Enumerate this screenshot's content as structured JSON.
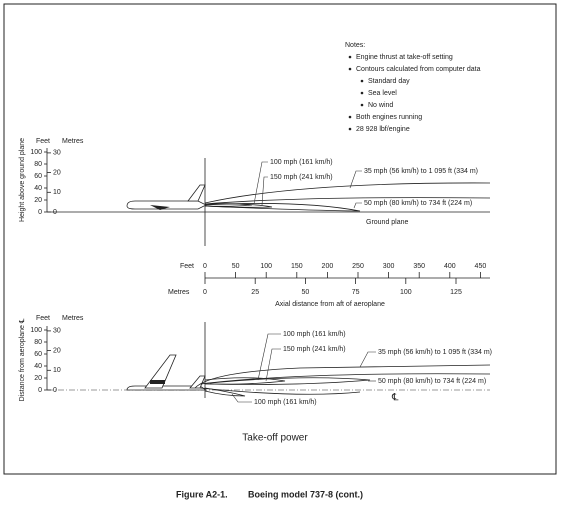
{
  "notes": {
    "title": "Notes:",
    "items": [
      "Engine thrust at take-off setting",
      "Contours calculated from computer data",
      "Standard day",
      "Sea level",
      "No wind",
      "Both engines running",
      "28 928 lbf/engine"
    ]
  },
  "top_panel": {
    "y_axis_label": "Height above ground plane",
    "feet_label": "Feet",
    "metres_label": "Metres",
    "feet_ticks": [
      "0",
      "20",
      "40",
      "60",
      "80",
      "100"
    ],
    "metres_ticks": [
      "0",
      "10",
      "20",
      "30"
    ],
    "contours": [
      "100 mph (161 km/h)",
      "150 mph (241 km/h)",
      "35 mph (56 km/h) to 1 095 ft (334 m)",
      "50 mph (80 km/h) to 734 ft (224 m)"
    ],
    "ground_label": "Ground plane"
  },
  "distance_axis": {
    "feet_label": "Feet",
    "feet_ticks": [
      "0",
      "50",
      "100",
      "150",
      "200",
      "250",
      "300",
      "350",
      "400",
      "450"
    ],
    "metres_label": "Metres",
    "metres_ticks": [
      "0",
      "25",
      "50",
      "75",
      "100",
      "125"
    ],
    "title": "Axial distance from aft of aeroplane"
  },
  "bottom_panel": {
    "y_axis_label": "Distance from aeroplane ℄",
    "feet_label": "Feet",
    "metres_label": "Metres",
    "feet_ticks": [
      "0",
      "20",
      "40",
      "60",
      "80",
      "100"
    ],
    "metres_ticks": [
      "0",
      "10",
      "20",
      "30"
    ],
    "contours": [
      "100 mph (161 km/h)",
      "150 mph (241 km/h)",
      "35 mph (56 km/h) to 1 095 ft (334 m)",
      "50 mph (80 km/h) to 734 ft (224 m)",
      "100 mph (161 km/h)"
    ],
    "centreline_label": "℄"
  },
  "panel_title": "Take-off power",
  "caption": {
    "number": "Figure A2-1.",
    "text": "Boeing model 737-8 (cont.)"
  }
}
